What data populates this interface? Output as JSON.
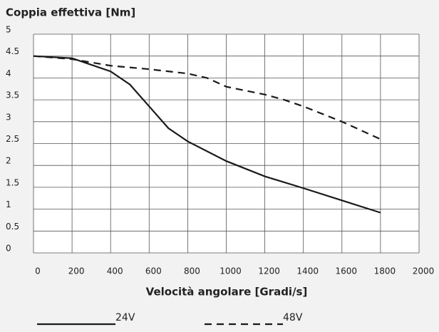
{
  "chart_data": {
    "type": "line",
    "title": "Coppia effettiva [Nm]",
    "x_label": "Velocità angolare [Gradi/s]",
    "xlim": [
      0,
      2000
    ],
    "xticks": [
      0,
      200,
      400,
      600,
      800,
      1000,
      1200,
      1400,
      1600,
      1800,
      2000
    ],
    "ylim": [
      0,
      5
    ],
    "yticks": [
      0,
      0.5,
      1,
      1.5,
      2,
      2.5,
      3,
      3.5,
      4,
      4.5,
      5
    ],
    "grid": true,
    "series": [
      {
        "name": "24V",
        "color": "#1a1a1a",
        "line_style": "solid",
        "x": [
          0,
          200,
          400,
          500,
          600,
          700,
          800,
          1000,
          1200,
          1400,
          1600,
          1800
        ],
        "values": [
          4.5,
          4.45,
          4.15,
          3.85,
          3.35,
          2.85,
          2.55,
          2.1,
          1.75,
          1.48,
          1.2,
          0.92
        ]
      },
      {
        "name": "48V",
        "color": "#1a1a1a",
        "line_style": "dashed",
        "x": [
          0,
          200,
          400,
          600,
          800,
          900,
          1000,
          1200,
          1300,
          1400,
          1600,
          1800
        ],
        "values": [
          4.5,
          4.43,
          4.28,
          4.2,
          4.1,
          4.0,
          3.8,
          3.62,
          3.5,
          3.35,
          3.0,
          2.6
        ]
      }
    ]
  }
}
